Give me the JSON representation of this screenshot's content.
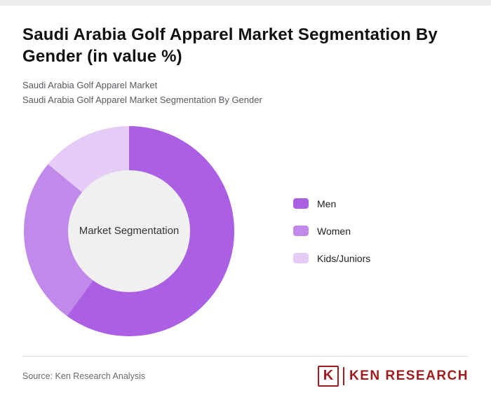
{
  "page": {
    "title": "Saudi Arabia Golf Apparel Market Segmentation By Gender (in value %)",
    "subtitle_line1": "Saudi Arabia Golf Apparel Market",
    "subtitle_line2": "Saudi Arabia Golf Apparel Market Segmentation By Gender",
    "source": "Source: Ken Research Analysis",
    "brand": {
      "k_mark": "K",
      "name": "KEN RESEARCH",
      "color": "#9e1b1e"
    }
  },
  "chart_data": {
    "type": "pie",
    "donut": true,
    "title": "Saudi Arabia Golf Apparel Market Segmentation By Gender (in value %)",
    "center_label": "Market Segmentation",
    "legend_position": "right",
    "start_angle_deg": 0,
    "direction": "clockwise",
    "segments": [
      {
        "label": "Men",
        "value": 60,
        "color": "#ab5fe3"
      },
      {
        "label": "Women",
        "value": 26,
        "color": "#c189e9"
      },
      {
        "label": "Kids/Juniors",
        "value": 14,
        "color": "#e5ccf6"
      }
    ]
  }
}
